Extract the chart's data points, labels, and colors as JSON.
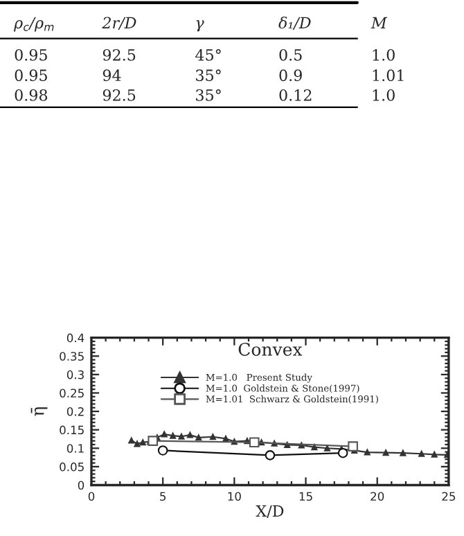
{
  "chart_data": {
    "type": "line",
    "title": "Convex",
    "xlabel": "X/D",
    "ylabel": "η̄",
    "annotations": [
      "ρ$_{c}$/ρ$_{m}$",
      "2r/D",
      "γ",
      "δ₁/D",
      "M",
      "0.95",
      "92.5",
      "45°",
      "0.5",
      "1.0",
      "0.95",
      "94",
      "35°",
      "0.9",
      "1.01",
      "0.98",
      "92.5",
      "35°",
      "0.12",
      "1.0"
    ],
    "xlim": [
      0,
      25
    ],
    "xticks": [
      0,
      5,
      10,
      15,
      20,
      25
    ],
    "ylim": [
      0,
      0.4
    ],
    "yticks": [
      0,
      0.05,
      0.1,
      0.15,
      0.2,
      0.25,
      0.3,
      0.35,
      0.4
    ],
    "grid": false,
    "legend": "top",
    "series": [
      {
        "name": "M=1.0   Present Study",
        "color": "#333333",
        "marker": "triangle",
        "x": [
          2.8,
          3.2,
          3.6,
          4.1,
          4.6,
          5.1,
          5.7,
          6.3,
          6.9,
          7.5,
          8.5,
          9.4,
          10.0,
          10.9,
          11.9,
          12.8,
          13.7,
          14.7,
          15.6,
          16.5,
          17.5,
          18.4,
          19.3,
          20.6,
          21.8,
          23.1,
          24.0,
          24.9
        ],
        "values": [
          0.121,
          0.112,
          0.116,
          0.118,
          0.129,
          0.138,
          0.134,
          0.132,
          0.136,
          0.129,
          0.131,
          0.126,
          0.118,
          0.12,
          0.116,
          0.113,
          0.109,
          0.108,
          0.103,
          0.1,
          0.098,
          0.094,
          0.089,
          0.088,
          0.087,
          0.085,
          0.083,
          0.082
        ]
      },
      {
        "name": "M=1.0  Goldstein & Stone(1997)",
        "color": "#111111",
        "marker": "circle",
        "x": [
          5.0,
          12.5,
          17.6
        ],
        "values": [
          0.094,
          0.081,
          0.087
        ]
      },
      {
        "name": "M=1.01  Schwarz & Goldstein(1991)",
        "color": "#555555",
        "marker": "square",
        "x": [
          4.3,
          11.4,
          18.3
        ],
        "values": [
          0.12,
          0.116,
          0.105
        ]
      }
    ]
  }
}
